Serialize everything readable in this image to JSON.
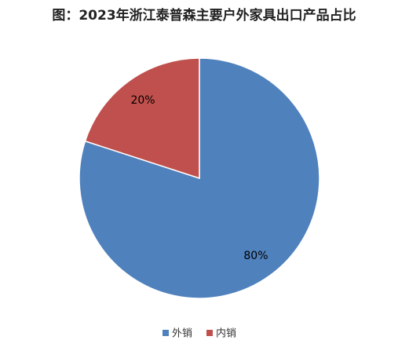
{
  "chart_data": {
    "type": "pie",
    "title": "图：2023年浙江泰普森主要户外家具出口产品占比",
    "categories": [
      "外销",
      "内销"
    ],
    "values": [
      80,
      20
    ],
    "value_labels": [
      "80%",
      "20%"
    ],
    "colors": [
      "#4f81bd",
      "#c0504d"
    ]
  }
}
